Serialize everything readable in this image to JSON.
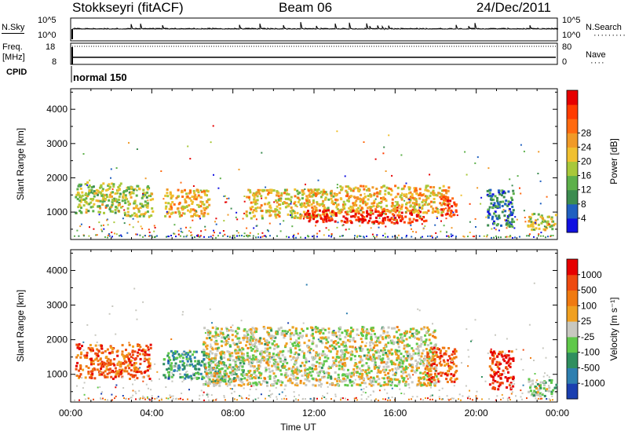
{
  "header": {
    "station": "Stokkseyri (fitACF)",
    "beam": "Beam 06",
    "date": "24/Dec/2011"
  },
  "status": {
    "nsky_label": "N.Sky",
    "nsky_ticks": [
      "10^5",
      "10^0"
    ],
    "nsearch_label": "N.Search",
    "nsearch_dots": "·········",
    "freq_label": "Freq.",
    "freq_unit": "[MHz]",
    "freq_ticks": [
      "18",
      "8"
    ],
    "nave_label": "Nave",
    "nave_dots": "····",
    "nave_ticks": [
      "80",
      "0"
    ],
    "cpid_label": "CPID",
    "cpid_text": "normal 150",
    "nsky_right_ticks": [
      "10^5",
      "10^0"
    ]
  },
  "chart_data": [
    {
      "type": "heatmap",
      "name": "power",
      "ylabel": "Slant Range [km]",
      "ylim": [
        200,
        4600
      ],
      "yticks": [
        1000,
        2000,
        3000,
        4000
      ],
      "xlim": [
        0,
        24
      ],
      "colorbar": {
        "label": "Power [dB]",
        "ticks": [
          "4",
          "8",
          "12",
          "16",
          "20",
          "24",
          "28"
        ],
        "colors": [
          "#1010e0",
          "#2060c0",
          "#3c8c50",
          "#5db04a",
          "#a8c83a",
          "#f0c030",
          "#f09a28",
          "#ff6a10",
          "#ff3c00",
          "#e60000"
        ]
      },
      "regions": [
        {
          "t0": 0.2,
          "t1": 2.5,
          "r0": 1000,
          "r1": 1900,
          "v": 0.45
        },
        {
          "t0": 2.5,
          "t1": 4.0,
          "r0": 900,
          "r1": 1800,
          "v": 0.45
        },
        {
          "t0": 4.6,
          "t1": 6.8,
          "r0": 900,
          "r1": 1700,
          "v": 0.6
        },
        {
          "t0": 8.6,
          "t1": 13.0,
          "r0": 850,
          "r1": 1700,
          "v": 0.55
        },
        {
          "t0": 11.5,
          "t1": 17.5,
          "r0": 700,
          "r1": 1100,
          "v": 0.92
        },
        {
          "t0": 13.0,
          "t1": 18.6,
          "r0": 1000,
          "r1": 1800,
          "v": 0.6
        },
        {
          "t0": 18.2,
          "t1": 19.0,
          "r0": 900,
          "r1": 1500,
          "v": 0.8
        },
        {
          "t0": 20.5,
          "t1": 21.8,
          "r0": 600,
          "r1": 1700,
          "v": 0.2
        },
        {
          "t0": 22.5,
          "t1": 23.9,
          "r0": 500,
          "r1": 1000,
          "v": 0.5
        }
      ]
    },
    {
      "type": "heatmap",
      "name": "velocity",
      "ylabel": "Slant Range [km]",
      "xlabel": "Time UT",
      "ylim": [
        200,
        4600
      ],
      "yticks": [
        1000,
        2000,
        3000,
        4000
      ],
      "xlim": [
        0,
        24
      ],
      "xticks": [
        "00:00",
        "04:00",
        "08:00",
        "12:00",
        "16:00",
        "20:00",
        "00:00"
      ],
      "colorbar": {
        "label": "Velocity [m s⁻¹]",
        "ticks": [
          "1000",
          "500",
          "100",
          "25",
          "-25",
          "-100",
          "-500",
          "-1000"
        ],
        "colors": [
          "#1a3fb0",
          "#2e7fb0",
          "#2f8f5f",
          "#5fc84a",
          "#c8c8c0",
          "#f0a020",
          "#f07a10",
          "#ee4a10",
          "#e60000"
        ]
      },
      "regions": [
        {
          "t0": 0.2,
          "t1": 3.9,
          "r0": 900,
          "r1": 1900,
          "v": 0.78
        },
        {
          "t0": 4.5,
          "t1": 6.8,
          "r0": 900,
          "r1": 1700,
          "v": 0.28
        },
        {
          "t0": 6.8,
          "t1": 8.5,
          "r0": 800,
          "r1": 1500,
          "v": 0.36
        },
        {
          "t0": 6.5,
          "t1": 18.0,
          "r0": 700,
          "r1": 2400,
          "v": 0.5
        },
        {
          "t0": 17.5,
          "t1": 19.0,
          "r0": 800,
          "r1": 1800,
          "v": 0.8
        },
        {
          "t0": 20.6,
          "t1": 21.8,
          "r0": 600,
          "r1": 1700,
          "v": 0.9
        },
        {
          "t0": 22.5,
          "t1": 23.9,
          "r0": 400,
          "r1": 900,
          "v": 0.4
        }
      ]
    }
  ]
}
